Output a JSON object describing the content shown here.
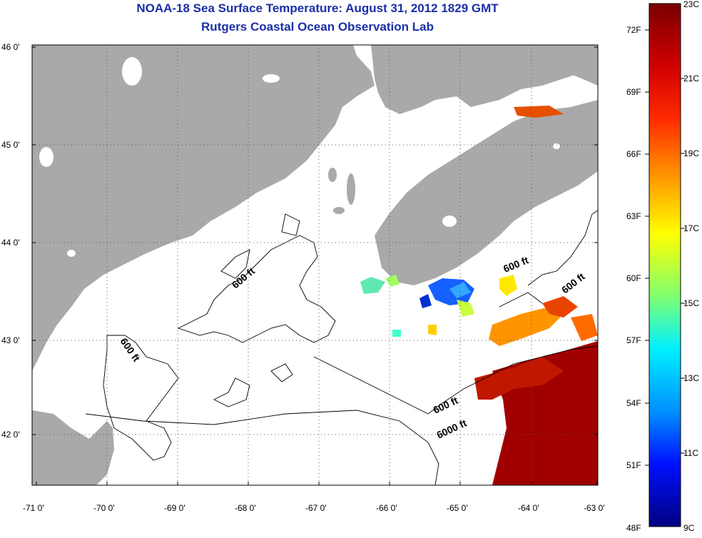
{
  "header": {
    "title": "NOAA-18 Sea Surface Temperature:  August 31, 2012 1829 GMT",
    "subtitle": "Rutgers Coastal Ocean Observation Lab"
  },
  "map": {
    "lat_ticks": [
      "46 0'",
      "45 0'",
      "44 0'",
      "43 0'",
      "42 0'"
    ],
    "lon_ticks": [
      "-71 0'",
      "-70 0'",
      "-69 0'",
      "-68 0'",
      "-67 0'",
      "-66 0'",
      "-65 0'",
      "-64 0'",
      "-63 0'"
    ],
    "contour_labels": [
      "600 ft",
      "600 ft",
      "600 ft",
      "600 ft",
      "600 ft",
      "6000 ft"
    ],
    "colors": {
      "land": "#a9a9a9",
      "water": "#ffffff",
      "grid": "#666666"
    }
  },
  "colorbar": {
    "fahrenheit_labels": [
      "72F",
      "69F",
      "66F",
      "63F",
      "60F",
      "57F",
      "54F",
      "51F",
      "48F"
    ],
    "celsius_labels": [
      "23C",
      "21C",
      "19C",
      "17C",
      "15C",
      "13C",
      "11C",
      "9C"
    ],
    "colors": [
      "#800000",
      "#ff0000",
      "#ff8000",
      "#ffff00",
      "#80ff80",
      "#00ffff",
      "#0080ff",
      "#0000ff",
      "#000080"
    ]
  }
}
